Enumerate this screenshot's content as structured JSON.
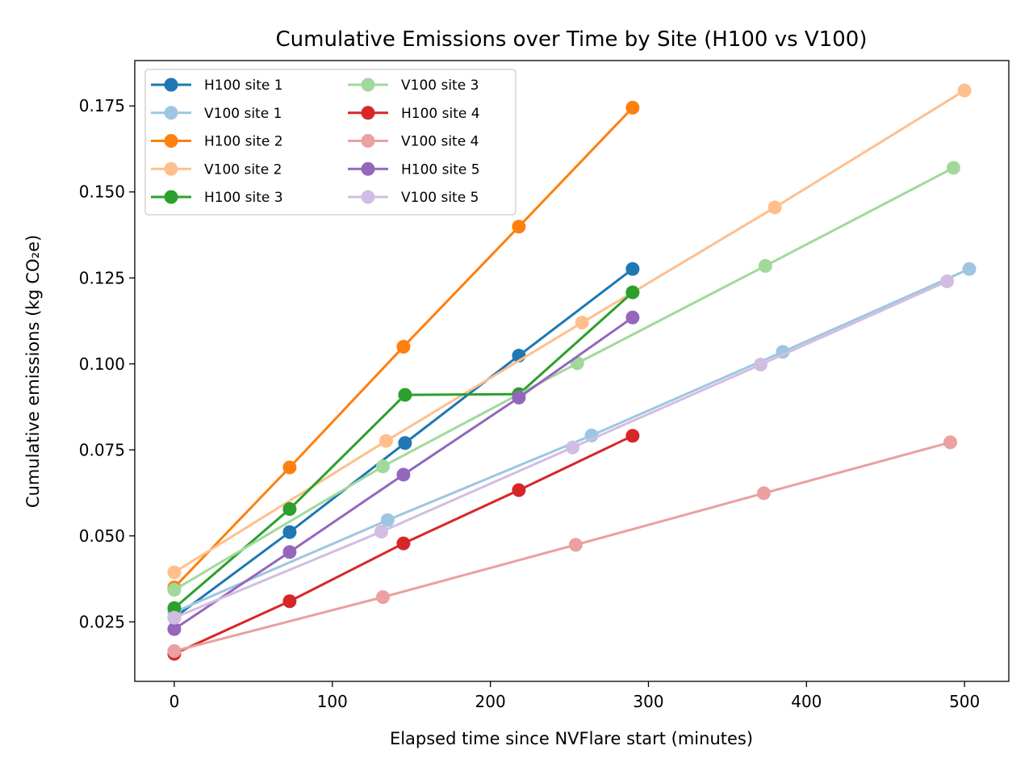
{
  "chart_data": {
    "type": "line",
    "title": "Cumulative Emissions over Time by Site (H100 vs V100)",
    "xlabel": "Elapsed time since NVFlare start (minutes)",
    "ylabel": "Cumulative emissions (kg CO₂e)",
    "xlim": [
      -25,
      528
    ],
    "ylim": [
      0.0077,
      0.1882
    ],
    "x_ticks": [
      0,
      100,
      200,
      300,
      400,
      500
    ],
    "x_tick_labels": [
      "0",
      "100",
      "200",
      "300",
      "400",
      "500"
    ],
    "y_ticks": [
      0.025,
      0.05,
      0.075,
      0.1,
      0.125,
      0.15,
      0.175
    ],
    "y_tick_labels": [
      "0.025",
      "0.050",
      "0.075",
      "0.100",
      "0.125",
      "0.150",
      "0.175"
    ],
    "grid": false,
    "legend_position": "upper-left",
    "legend_columns": 2,
    "series": [
      {
        "name": "H100 site 1",
        "color": "#1f77b4",
        "x": [
          0,
          73,
          146,
          218,
          290
        ],
        "y": [
          0.0262,
          0.0511,
          0.077,
          0.1024,
          0.1276
        ]
      },
      {
        "name": "V100 site 1",
        "color": "#9ec6e0",
        "x": [
          0,
          135,
          264,
          385,
          503
        ],
        "y": [
          0.0278,
          0.0546,
          0.0792,
          0.1035,
          0.1276
        ]
      },
      {
        "name": "H100 site 2",
        "color": "#ff7f0e",
        "x": [
          0,
          73,
          145,
          218,
          290
        ],
        "y": [
          0.035,
          0.0699,
          0.105,
          0.1399,
          0.1745
        ]
      },
      {
        "name": "V100 site 2",
        "color": "#ffbf8c",
        "x": [
          0,
          134,
          258,
          380,
          500
        ],
        "y": [
          0.0394,
          0.0776,
          0.112,
          0.1455,
          0.1795
        ]
      },
      {
        "name": "H100 site 3",
        "color": "#2ca02c",
        "x": [
          0,
          73,
          146,
          218,
          290
        ],
        "y": [
          0.029,
          0.0578,
          0.091,
          0.0912,
          0.1208
        ]
      },
      {
        "name": "V100 site 3",
        "color": "#a1d99b",
        "x": [
          0,
          132,
          255,
          374,
          493
        ],
        "y": [
          0.0343,
          0.0702,
          0.1002,
          0.1285,
          0.157
        ]
      },
      {
        "name": "H100 site 4",
        "color": "#d62728",
        "x": [
          0,
          73,
          145,
          218,
          290
        ],
        "y": [
          0.0157,
          0.031,
          0.0478,
          0.0633,
          0.0791
        ]
      },
      {
        "name": "V100 site 4",
        "color": "#eba0a1",
        "x": [
          0,
          132,
          254,
          373,
          491
        ],
        "y": [
          0.0165,
          0.0322,
          0.0474,
          0.0624,
          0.0772
        ]
      },
      {
        "name": "H100 site 5",
        "color": "#9467bd",
        "x": [
          0,
          73,
          145,
          218,
          290
        ],
        "y": [
          0.0229,
          0.0453,
          0.0678,
          0.0902,
          0.1135
        ]
      },
      {
        "name": "V100 site 5",
        "color": "#d2bde2",
        "x": [
          0,
          131,
          252,
          371,
          489
        ],
        "y": [
          0.0262,
          0.0512,
          0.0757,
          0.0998,
          0.124
        ]
      }
    ]
  }
}
